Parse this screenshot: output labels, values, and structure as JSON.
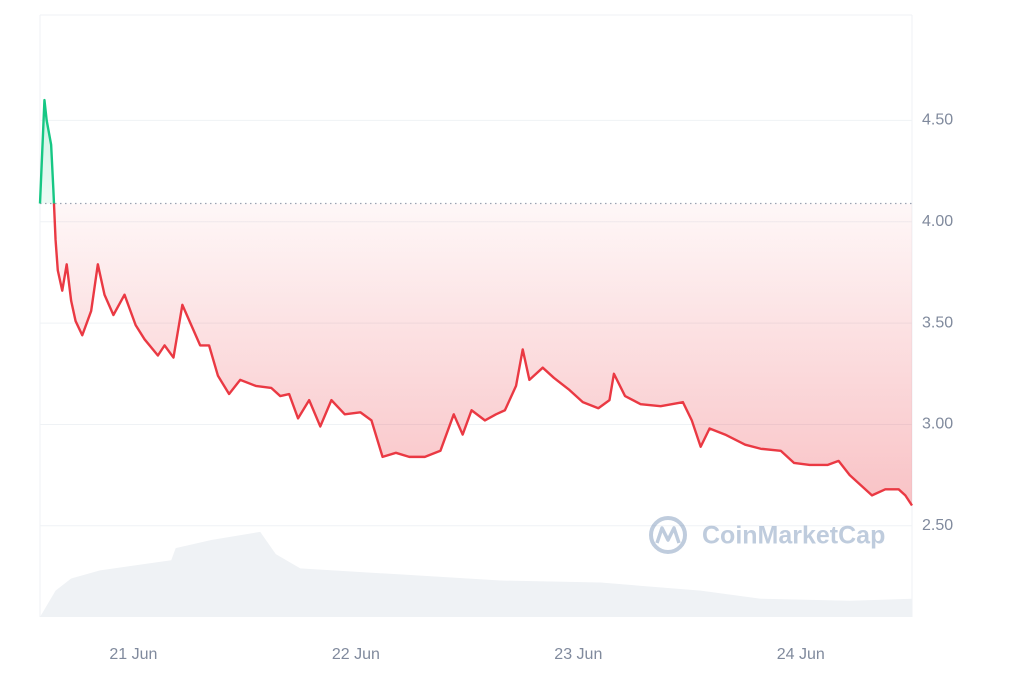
{
  "chart_data": {
    "type": "line",
    "watermark": "CoinMarketCap",
    "x": [
      20.58,
      20.6,
      20.61,
      20.63,
      20.64,
      20.65,
      20.66,
      20.68,
      20.7,
      20.72,
      20.74,
      20.77,
      20.81,
      20.84,
      20.87,
      20.91,
      20.96,
      21.01,
      21.05,
      21.11,
      21.14,
      21.18,
      21.22,
      21.26,
      21.3,
      21.34,
      21.38,
      21.43,
      21.48,
      21.55,
      21.62,
      21.66,
      21.7,
      21.74,
      21.79,
      21.84,
      21.89,
      21.95,
      22.02,
      22.07,
      22.12,
      22.18,
      22.24,
      22.31,
      22.38,
      22.44,
      22.48,
      22.52,
      22.58,
      22.63,
      22.67,
      22.72,
      22.75,
      22.78,
      22.84,
      22.89,
      22.96,
      23.02,
      23.09,
      23.14,
      23.16,
      23.21,
      23.28,
      23.37,
      23.47,
      23.51,
      23.55,
      23.59,
      23.66,
      23.75,
      23.82,
      23.91,
      23.97,
      24.04,
      24.12,
      24.17,
      24.22,
      24.27,
      24.32,
      24.38,
      24.44,
      24.47,
      24.5
    ],
    "values": [
      4.09,
      4.6,
      4.5,
      4.38,
      4.16,
      3.91,
      3.76,
      3.66,
      3.79,
      3.61,
      3.51,
      3.44,
      3.56,
      3.79,
      3.64,
      3.54,
      3.64,
      3.49,
      3.42,
      3.34,
      3.39,
      3.33,
      3.59,
      3.49,
      3.39,
      3.39,
      3.24,
      3.15,
      3.22,
      3.19,
      3.18,
      3.14,
      3.15,
      3.03,
      3.12,
      2.99,
      3.12,
      3.05,
      3.06,
      3.02,
      2.84,
      2.86,
      2.84,
      2.84,
      2.87,
      3.05,
      2.95,
      3.07,
      3.02,
      3.05,
      3.07,
      3.19,
      3.37,
      3.22,
      3.28,
      3.23,
      3.17,
      3.11,
      3.08,
      3.12,
      3.25,
      3.14,
      3.1,
      3.09,
      3.11,
      3.02,
      2.89,
      2.98,
      2.95,
      2.9,
      2.88,
      2.87,
      2.81,
      2.8,
      2.8,
      2.82,
      2.75,
      2.7,
      2.65,
      2.68,
      2.68,
      2.65,
      2.6
    ],
    "baseline": 4.09,
    "up_color": "#16c784",
    "down_color": "#ea3943",
    "volume": {
      "color": "#eff2f5",
      "x": [
        20.58,
        20.65,
        20.72,
        20.85,
        21.17,
        21.19,
        21.35,
        21.57,
        21.64,
        21.75,
        22.2,
        22.65,
        23.1,
        23.55,
        23.82,
        24.22,
        24.5
      ],
      "values": [
        2.05,
        2.18,
        2.24,
        2.28,
        2.33,
        2.39,
        2.43,
        2.47,
        2.36,
        2.29,
        2.26,
        2.23,
        2.22,
        2.18,
        2.14,
        2.13,
        2.14
      ]
    },
    "xlim": [
      20.58,
      24.5
    ],
    "xticks": [
      {
        "value": 21,
        "label": "21 Jun"
      },
      {
        "value": 22,
        "label": "22 Jun"
      },
      {
        "value": 23,
        "label": "23 Jun"
      },
      {
        "value": 24,
        "label": "24 Jun"
      }
    ],
    "ylim": [
      2.05,
      5.02
    ],
    "yticks": [
      {
        "value": 2.5,
        "label": "2.50"
      },
      {
        "value": 3,
        "label": "3.00"
      },
      {
        "value": 3.5,
        "label": "3.50"
      },
      {
        "value": 4,
        "label": "4.00"
      },
      {
        "value": 4.5,
        "label": "4.50"
      }
    ],
    "grid": true
  }
}
